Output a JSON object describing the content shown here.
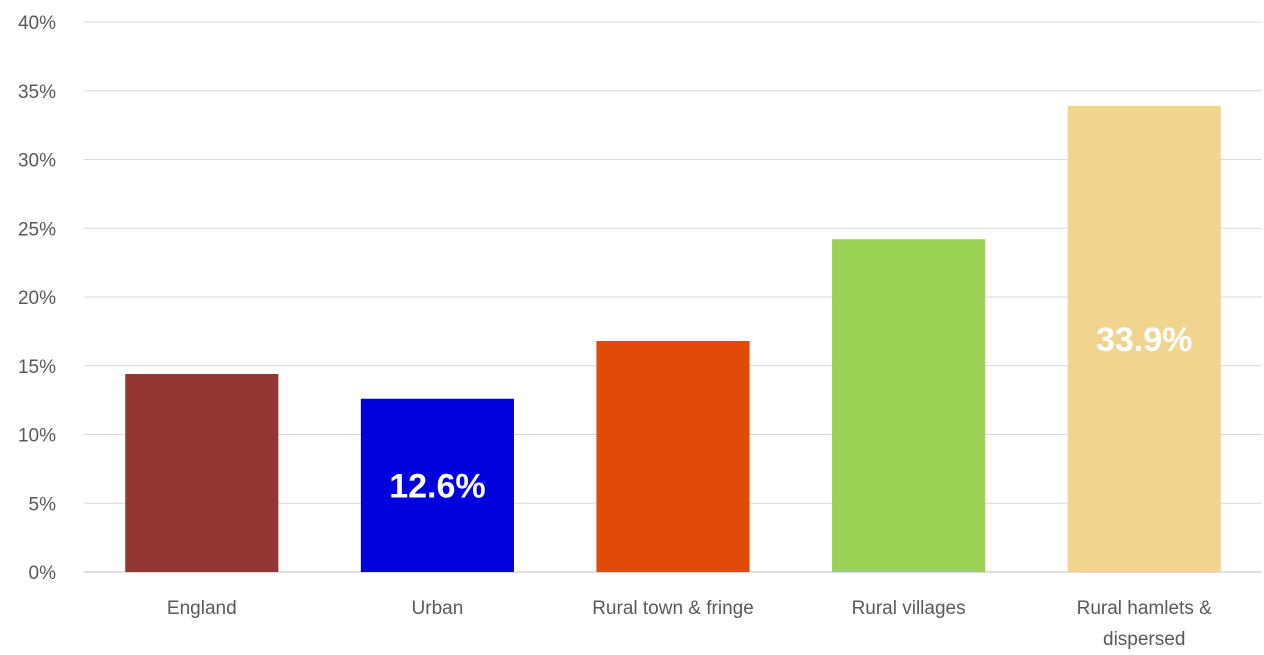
{
  "chart_data": {
    "type": "bar",
    "categories": [
      [
        "England"
      ],
      [
        "Urban"
      ],
      [
        "Rural town & fringe"
      ],
      [
        "Rural villages"
      ],
      [
        "Rural hamlets &",
        "dispersed"
      ]
    ],
    "values": [
      14.4,
      12.6,
      16.8,
      24.2,
      33.9
    ],
    "colors": [
      "#943634",
      "#0000dd",
      "#e24a07",
      "#9bd154",
      "#f1d58e"
    ],
    "data_labels": [
      "",
      "12.6%",
      "",
      "",
      "33.9%"
    ],
    "ylim": [
      0,
      40
    ],
    "yticks": [
      0,
      5,
      10,
      15,
      20,
      25,
      30,
      35,
      40
    ],
    "ytick_labels": [
      "0%",
      "5%",
      "10%",
      "15%",
      "20%",
      "25%",
      "30%",
      "35%",
      "40%"
    ],
    "grid": true,
    "title": "",
    "xlabel": "",
    "ylabel": ""
  }
}
